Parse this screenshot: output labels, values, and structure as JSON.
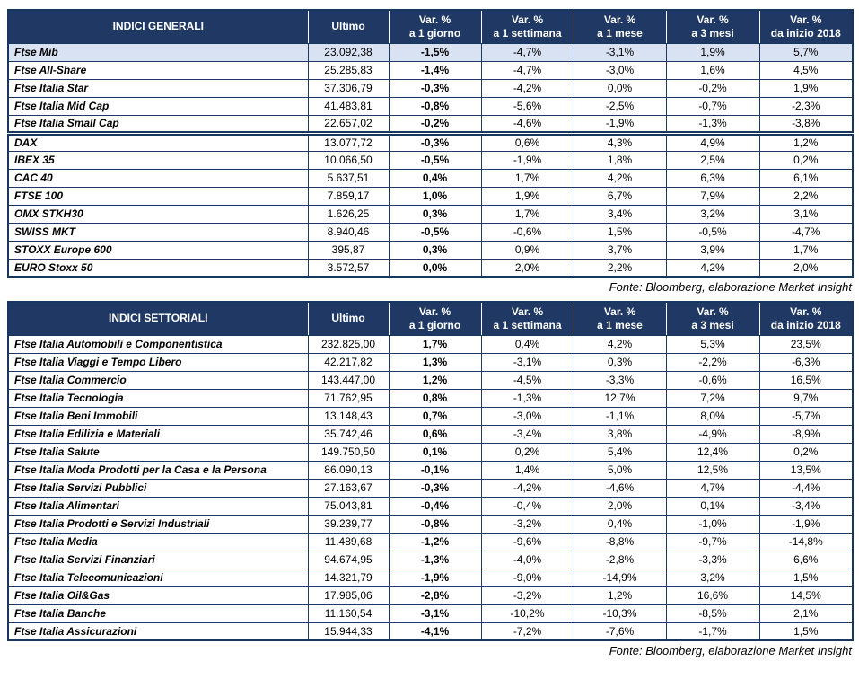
{
  "colors": {
    "header_bg": "#1F3864",
    "header_text": "#FFFFFF",
    "grid_border": "#17375E",
    "row_label_text": "#1F3864",
    "highlight_row_bg": "#D9E2F3"
  },
  "tables": [
    {
      "title": "INDICI GENERALI",
      "columns": {
        "ultimo": "Ultimo",
        "var_headers": [
          {
            "line1": "Var. %",
            "line2": "a 1 giorno"
          },
          {
            "line1": "Var. %",
            "line2": "a 1 settimana"
          },
          {
            "line1": "Var. %",
            "line2": "a 1 mese"
          },
          {
            "line1": "Var. %",
            "line2": "a 3 mesi"
          },
          {
            "line1": "Var. %",
            "line2": "da inizio 2018"
          }
        ]
      },
      "rows": [
        {
          "name": "Ftse Mib",
          "ultimo": "23.092,38",
          "vars": [
            "-1,5%",
            "-4,7%",
            "-3,1%",
            "1,9%",
            "5,7%"
          ],
          "highlight": true
        },
        {
          "name": "Ftse All-Share",
          "ultimo": "25.285,83",
          "vars": [
            "-1,4%",
            "-4,7%",
            "-3,0%",
            "1,6%",
            "4,5%"
          ]
        },
        {
          "name": "Ftse Italia Star",
          "ultimo": "37.306,79",
          "vars": [
            "-0,3%",
            "-4,2%",
            "0,0%",
            "-0,2%",
            "1,9%"
          ]
        },
        {
          "name": "Ftse Italia Mid Cap",
          "ultimo": "41.483,81",
          "vars": [
            "-0,8%",
            "-5,6%",
            "-2,5%",
            "-0,7%",
            "-2,3%"
          ]
        },
        {
          "name": "Ftse Italia Small Cap",
          "ultimo": "22.657,02",
          "vars": [
            "-0,2%",
            "-4,6%",
            "-1,9%",
            "-1,3%",
            "-3,8%"
          ]
        },
        {
          "name": "DAX",
          "ultimo": "13.077,72",
          "vars": [
            "-0,3%",
            "0,6%",
            "4,3%",
            "4,9%",
            "1,2%"
          ],
          "separator_above": true
        },
        {
          "name": "IBEX 35",
          "ultimo": "10.066,50",
          "vars": [
            "-0,5%",
            "-1,9%",
            "1,8%",
            "2,5%",
            "0,2%"
          ]
        },
        {
          "name": "CAC 40",
          "ultimo": "5.637,51",
          "vars": [
            "0,4%",
            "1,7%",
            "4,2%",
            "6,3%",
            "6,1%"
          ]
        },
        {
          "name": "FTSE 100",
          "ultimo": "7.859,17",
          "vars": [
            "1,0%",
            "1,9%",
            "6,7%",
            "7,9%",
            "2,2%"
          ]
        },
        {
          "name": "OMX STKH30",
          "ultimo": "1.626,25",
          "vars": [
            "0,3%",
            "1,7%",
            "3,4%",
            "3,2%",
            "3,1%"
          ]
        },
        {
          "name": "SWISS MKT",
          "ultimo": "8.940,46",
          "vars": [
            "-0,5%",
            "-0,6%",
            "1,5%",
            "-0,5%",
            "-4,7%"
          ]
        },
        {
          "name": "STOXX Europe 600",
          "ultimo": "395,87",
          "vars": [
            "0,3%",
            "0,9%",
            "3,7%",
            "3,9%",
            "1,7%"
          ]
        },
        {
          "name": "EURO Stoxx 50",
          "ultimo": "3.572,57",
          "vars": [
            "0,0%",
            "2,0%",
            "2,2%",
            "4,2%",
            "2,0%"
          ]
        }
      ],
      "fonte": "Fonte: Bloomberg, elaborazione Market Insight"
    },
    {
      "title": "INDICI SETTORIALI",
      "columns": {
        "ultimo": "Ultimo",
        "var_headers": [
          {
            "line1": "Var. %",
            "line2": "a 1 giorno"
          },
          {
            "line1": "Var. %",
            "line2": "a 1 settimana"
          },
          {
            "line1": "Var. %",
            "line2": "a 1 mese"
          },
          {
            "line1": "Var. %",
            "line2": "a 3 mesi"
          },
          {
            "line1": "Var. %",
            "line2": "da inizio 2018"
          }
        ]
      },
      "rows": [
        {
          "name": "Ftse Italia Automobili e Componentistica",
          "ultimo": "232.825,00",
          "vars": [
            "1,7%",
            "0,4%",
            "4,2%",
            "5,3%",
            "23,5%"
          ]
        },
        {
          "name": "Ftse Italia Viaggi e Tempo Libero",
          "ultimo": "42.217,82",
          "vars": [
            "1,3%",
            "-3,1%",
            "0,3%",
            "-2,2%",
            "-6,3%"
          ]
        },
        {
          "name": "Ftse Italia Commercio",
          "ultimo": "143.447,00",
          "vars": [
            "1,2%",
            "-4,5%",
            "-3,3%",
            "-0,6%",
            "16,5%"
          ]
        },
        {
          "name": "Ftse Italia Tecnologia",
          "ultimo": "71.762,95",
          "vars": [
            "0,8%",
            "-1,3%",
            "12,7%",
            "7,2%",
            "9,7%"
          ]
        },
        {
          "name": "Ftse Italia Beni Immobili",
          "ultimo": "13.148,43",
          "vars": [
            "0,7%",
            "-3,0%",
            "-1,1%",
            "8,0%",
            "-5,7%"
          ]
        },
        {
          "name": "Ftse Italia Edilizia e Materiali",
          "ultimo": "35.742,46",
          "vars": [
            "0,6%",
            "-3,4%",
            "3,8%",
            "-4,9%",
            "-8,9%"
          ]
        },
        {
          "name": "Ftse Italia Salute",
          "ultimo": "149.750,50",
          "vars": [
            "0,1%",
            "0,2%",
            "5,4%",
            "12,4%",
            "0,2%"
          ]
        },
        {
          "name": "Ftse Italia Moda Prodotti per la Casa e la Persona",
          "ultimo": "86.090,13",
          "vars": [
            "-0,1%",
            "1,4%",
            "5,0%",
            "12,5%",
            "13,5%"
          ]
        },
        {
          "name": "Ftse Italia Servizi Pubblici",
          "ultimo": "27.163,67",
          "vars": [
            "-0,3%",
            "-4,2%",
            "-4,6%",
            "4,7%",
            "-4,4%"
          ]
        },
        {
          "name": "Ftse Italia Alimentari",
          "ultimo": "75.043,81",
          "vars": [
            "-0,4%",
            "-0,4%",
            "2,0%",
            "0,1%",
            "-3,4%"
          ]
        },
        {
          "name": "Ftse Italia Prodotti e Servizi Industriali",
          "ultimo": "39.239,77",
          "vars": [
            "-0,8%",
            "-3,2%",
            "0,4%",
            "-1,0%",
            "-1,9%"
          ]
        },
        {
          "name": "Ftse Italia Media",
          "ultimo": "11.489,68",
          "vars": [
            "-1,2%",
            "-9,6%",
            "-8,8%",
            "-9,7%",
            "-14,8%"
          ]
        },
        {
          "name": "Ftse Italia Servizi Finanziari",
          "ultimo": "94.674,95",
          "vars": [
            "-1,3%",
            "-4,0%",
            "-2,8%",
            "-3,3%",
            "6,6%"
          ]
        },
        {
          "name": "Ftse Italia Telecomunicazioni",
          "ultimo": "14.321,79",
          "vars": [
            "-1,9%",
            "-9,0%",
            "-14,9%",
            "3,2%",
            "1,5%"
          ]
        },
        {
          "name": "Ftse Italia Oil&Gas",
          "ultimo": "17.985,06",
          "vars": [
            "-2,8%",
            "-3,2%",
            "1,2%",
            "16,6%",
            "14,5%"
          ]
        },
        {
          "name": "Ftse Italia Banche",
          "ultimo": "11.160,54",
          "vars": [
            "-3,1%",
            "-10,2%",
            "-10,3%",
            "-8,5%",
            "2,1%"
          ]
        },
        {
          "name": "Ftse Italia Assicurazioni",
          "ultimo": "15.944,33",
          "vars": [
            "-4,1%",
            "-7,2%",
            "-7,6%",
            "-1,7%",
            "1,5%"
          ]
        }
      ],
      "fonte": "Fonte: Bloomberg, elaborazione Market Insight"
    }
  ]
}
